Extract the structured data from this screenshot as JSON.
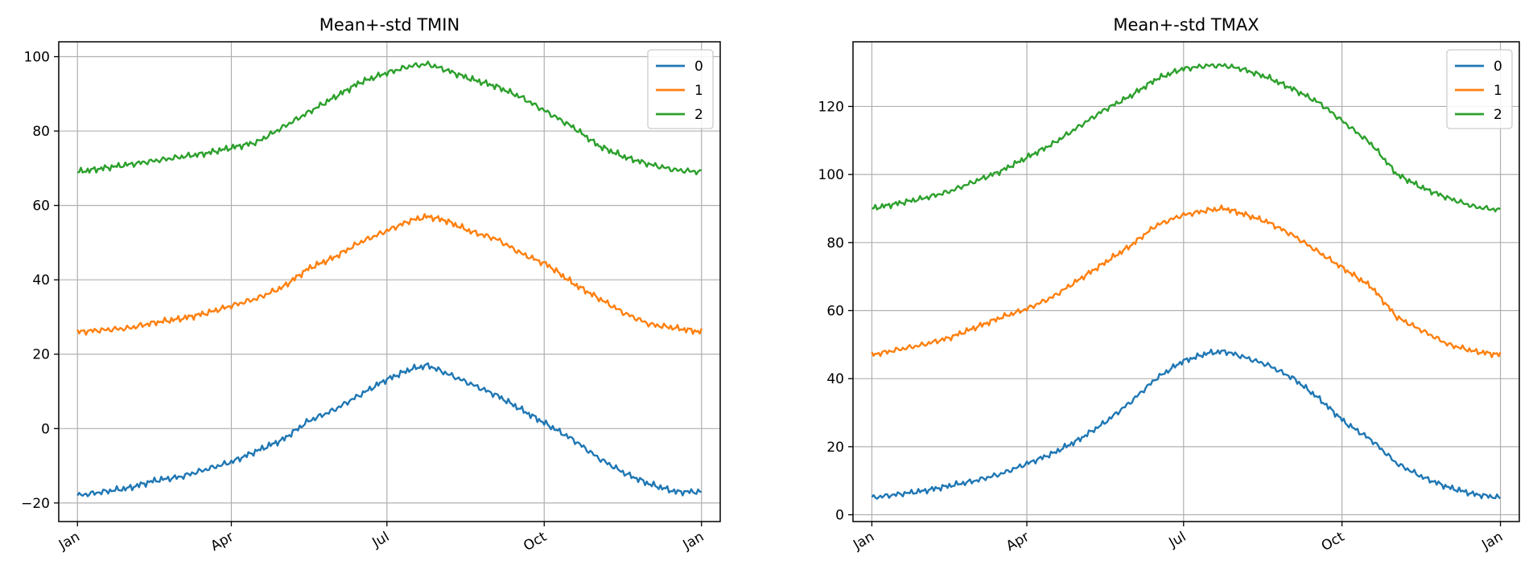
{
  "series_colors": [
    "#1f77b4",
    "#ff7f0e",
    "#2ca02c"
  ],
  "chart_data": [
    {
      "type": "line",
      "title": "Mean+-std   TMIN",
      "xlabel": "",
      "ylabel": "",
      "x_range_days": [
        0,
        365
      ],
      "ylim": [
        -25,
        104
      ],
      "yticks": [
        -20,
        0,
        20,
        40,
        60,
        80,
        100
      ],
      "ytick_labels": [
        "−20",
        "0",
        "20",
        "40",
        "60",
        "80",
        "100"
      ],
      "xticks_days": [
        0,
        90,
        181,
        273,
        365
      ],
      "xtick_labels": [
        "Jan",
        "Apr",
        "Jul",
        "Oct",
        "Jan"
      ],
      "grid": true,
      "legend_position": "top-right",
      "series": [
        {
          "name": "0",
          "points": [
            [
              0,
              -18
            ],
            [
              15,
              -17
            ],
            [
              30,
              -16
            ],
            [
              45,
              -14
            ],
            [
              60,
              -13
            ],
            [
              75,
              -11
            ],
            [
              90,
              -9
            ],
            [
              105,
              -6
            ],
            [
              120,
              -3
            ],
            [
              135,
              2
            ],
            [
              150,
              5
            ],
            [
              165,
              9
            ],
            [
              180,
              13
            ],
            [
              195,
              16
            ],
            [
              205,
              17
            ],
            [
              215,
              15
            ],
            [
              230,
              12
            ],
            [
              245,
              9
            ],
            [
              260,
              5
            ],
            [
              275,
              1
            ],
            [
              290,
              -3
            ],
            [
              305,
              -8
            ],
            [
              320,
              -12
            ],
            [
              335,
              -15
            ],
            [
              350,
              -17
            ],
            [
              365,
              -17
            ]
          ]
        },
        {
          "name": "1",
          "points": [
            [
              0,
              26
            ],
            [
              15,
              26.5
            ],
            [
              30,
              27
            ],
            [
              45,
              28.5
            ],
            [
              60,
              29.5
            ],
            [
              75,
              31
            ],
            [
              90,
              33
            ],
            [
              105,
              35
            ],
            [
              120,
              38
            ],
            [
              135,
              43
            ],
            [
              150,
              46
            ],
            [
              165,
              50
            ],
            [
              180,
              53
            ],
            [
              195,
              56
            ],
            [
              205,
              57
            ],
            [
              215,
              56
            ],
            [
              230,
              53
            ],
            [
              245,
              51
            ],
            [
              260,
              47
            ],
            [
              275,
              44
            ],
            [
              290,
              39
            ],
            [
              305,
              35
            ],
            [
              320,
              31
            ],
            [
              335,
              28
            ],
            [
              350,
              27
            ],
            [
              365,
              26
            ]
          ]
        },
        {
          "name": "2",
          "points": [
            [
              0,
              69
            ],
            [
              15,
              70
            ],
            [
              30,
              71
            ],
            [
              45,
              72
            ],
            [
              60,
              73
            ],
            [
              75,
              74
            ],
            [
              90,
              75.5
            ],
            [
              105,
              77
            ],
            [
              120,
              81
            ],
            [
              135,
              85
            ],
            [
              150,
              89
            ],
            [
              165,
              93
            ],
            [
              180,
              95.5
            ],
            [
              195,
              97.5
            ],
            [
              205,
              98
            ],
            [
              215,
              96.5
            ],
            [
              230,
              94
            ],
            [
              245,
              92
            ],
            [
              260,
              89
            ],
            [
              275,
              85
            ],
            [
              290,
              81
            ],
            [
              305,
              76
            ],
            [
              320,
              73
            ],
            [
              335,
              71
            ],
            [
              350,
              69.5
            ],
            [
              365,
              69
            ]
          ]
        }
      ]
    },
    {
      "type": "line",
      "title": "Mean+-std   TMAX",
      "xlabel": "",
      "ylabel": "",
      "x_range_days": [
        0,
        365
      ],
      "ylim": [
        -2,
        139
      ],
      "yticks": [
        0,
        20,
        40,
        60,
        80,
        100,
        120
      ],
      "ytick_labels": [
        "0",
        "20",
        "40",
        "60",
        "80",
        "100",
        "120"
      ],
      "xticks_days": [
        0,
        90,
        181,
        273,
        365
      ],
      "xtick_labels": [
        "Jan",
        "Apr",
        "Jul",
        "Oct",
        "Jan"
      ],
      "grid": true,
      "legend_position": "top-right",
      "series": [
        {
          "name": "0",
          "points": [
            [
              0,
              5
            ],
            [
              15,
              6
            ],
            [
              30,
              7
            ],
            [
              45,
              8.5
            ],
            [
              60,
              10
            ],
            [
              75,
              12
            ],
            [
              90,
              15
            ],
            [
              105,
              18
            ],
            [
              120,
              22
            ],
            [
              135,
              27
            ],
            [
              150,
              33
            ],
            [
              165,
              40
            ],
            [
              180,
              45
            ],
            [
              195,
              47.5
            ],
            [
              205,
              48
            ],
            [
              215,
              46.5
            ],
            [
              230,
              44
            ],
            [
              245,
              40
            ],
            [
              260,
              34
            ],
            [
              275,
              27
            ],
            [
              290,
              22
            ],
            [
              305,
              15
            ],
            [
              320,
              11
            ],
            [
              335,
              8
            ],
            [
              350,
              6
            ],
            [
              365,
              5
            ]
          ]
        },
        {
          "name": "1",
          "points": [
            [
              0,
              47
            ],
            [
              15,
              48.5
            ],
            [
              30,
              50
            ],
            [
              45,
              52
            ],
            [
              60,
              55
            ],
            [
              75,
              58
            ],
            [
              90,
              60.5
            ],
            [
              105,
              64
            ],
            [
              120,
              69
            ],
            [
              135,
              74
            ],
            [
              150,
              79
            ],
            [
              165,
              85
            ],
            [
              180,
              88
            ],
            [
              195,
              89.5
            ],
            [
              205,
              90
            ],
            [
              215,
              88.5
            ],
            [
              230,
              86
            ],
            [
              245,
              82
            ],
            [
              260,
              77
            ],
            [
              275,
              72
            ],
            [
              290,
              67
            ],
            [
              305,
              58
            ],
            [
              320,
              54
            ],
            [
              335,
              50
            ],
            [
              350,
              48
            ],
            [
              365,
              47
            ]
          ]
        },
        {
          "name": "2",
          "points": [
            [
              0,
              90
            ],
            [
              15,
              91.5
            ],
            [
              30,
              93
            ],
            [
              45,
              95
            ],
            [
              60,
              98
            ],
            [
              75,
              101
            ],
            [
              90,
              105
            ],
            [
              105,
              109
            ],
            [
              120,
              114
            ],
            [
              135,
              119
            ],
            [
              150,
              123
            ],
            [
              165,
              128
            ],
            [
              180,
              131
            ],
            [
              195,
              132
            ],
            [
              205,
              132
            ],
            [
              215,
              131
            ],
            [
              230,
              128.5
            ],
            [
              245,
              125
            ],
            [
              260,
              121
            ],
            [
              275,
              115
            ],
            [
              290,
              109
            ],
            [
              305,
              100
            ],
            [
              320,
              96
            ],
            [
              335,
              93
            ],
            [
              350,
              90.5
            ],
            [
              365,
              89.5
            ]
          ]
        }
      ]
    }
  ]
}
